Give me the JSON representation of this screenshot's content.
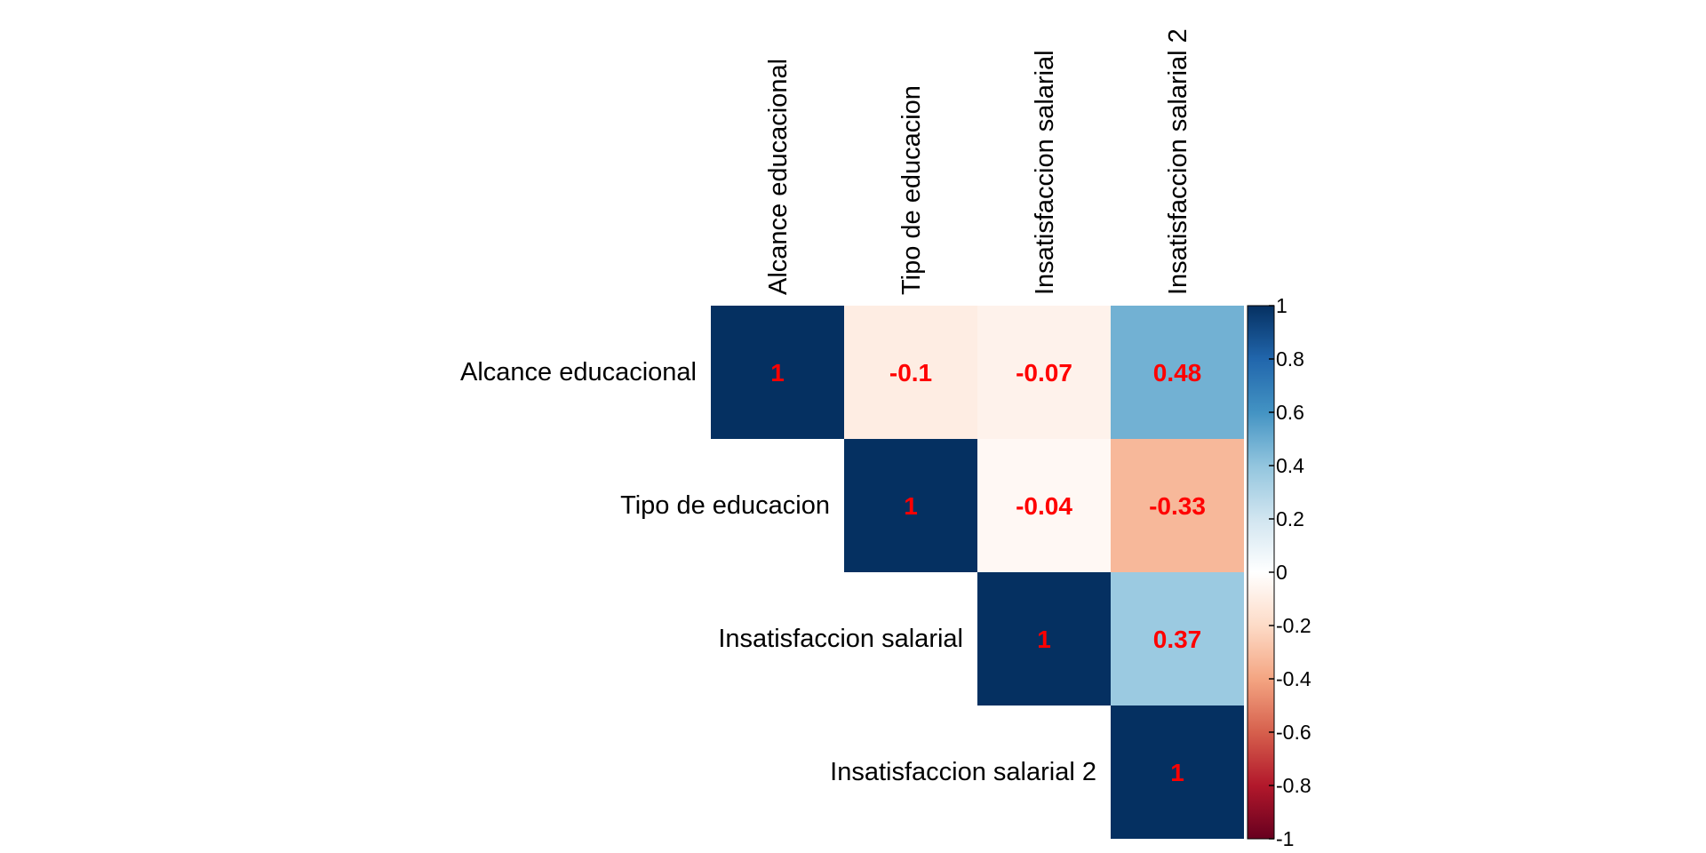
{
  "chart_data": {
    "type": "heatmap",
    "title": "",
    "variables": [
      "Alcance educacional",
      "Tipo de educacion",
      "Insatisfaccion salarial",
      "Insatisfaccion salarial 2"
    ],
    "matrix": [
      [
        1,
        -0.1,
        -0.07,
        0.48
      ],
      [
        null,
        1,
        -0.04,
        -0.33
      ],
      [
        null,
        null,
        1,
        0.37
      ],
      [
        null,
        null,
        null,
        1
      ]
    ],
    "cell_labels": [
      [
        "1",
        "-0.1",
        "-0.07",
        "0.48"
      ],
      [
        null,
        "1",
        "-0.04",
        "-0.33"
      ],
      [
        null,
        null,
        "1",
        "0.37"
      ],
      [
        null,
        null,
        null,
        "1"
      ]
    ],
    "shape": "upper-triangle",
    "colorbar": {
      "range": [
        -1,
        1
      ],
      "ticks": [
        "1",
        "0.8",
        "0.6",
        "0.4",
        "0.2",
        "0",
        "-0.2",
        "-0.4",
        "-0.6",
        "-0.8",
        "-1"
      ],
      "tick_values": [
        1,
        0.8,
        0.6,
        0.4,
        0.2,
        0,
        -0.2,
        -0.4,
        -0.6,
        -0.8,
        -1
      ],
      "colors": [
        "#67001F",
        "#B2182B",
        "#D6604D",
        "#F4A582",
        "#FDDBC7",
        "#FFFFFF",
        "#D1E5F0",
        "#92C5DE",
        "#4393C3",
        "#2166AC",
        "#053061"
      ]
    },
    "label_color": "#FF0000",
    "grid": false,
    "legend": "right"
  }
}
